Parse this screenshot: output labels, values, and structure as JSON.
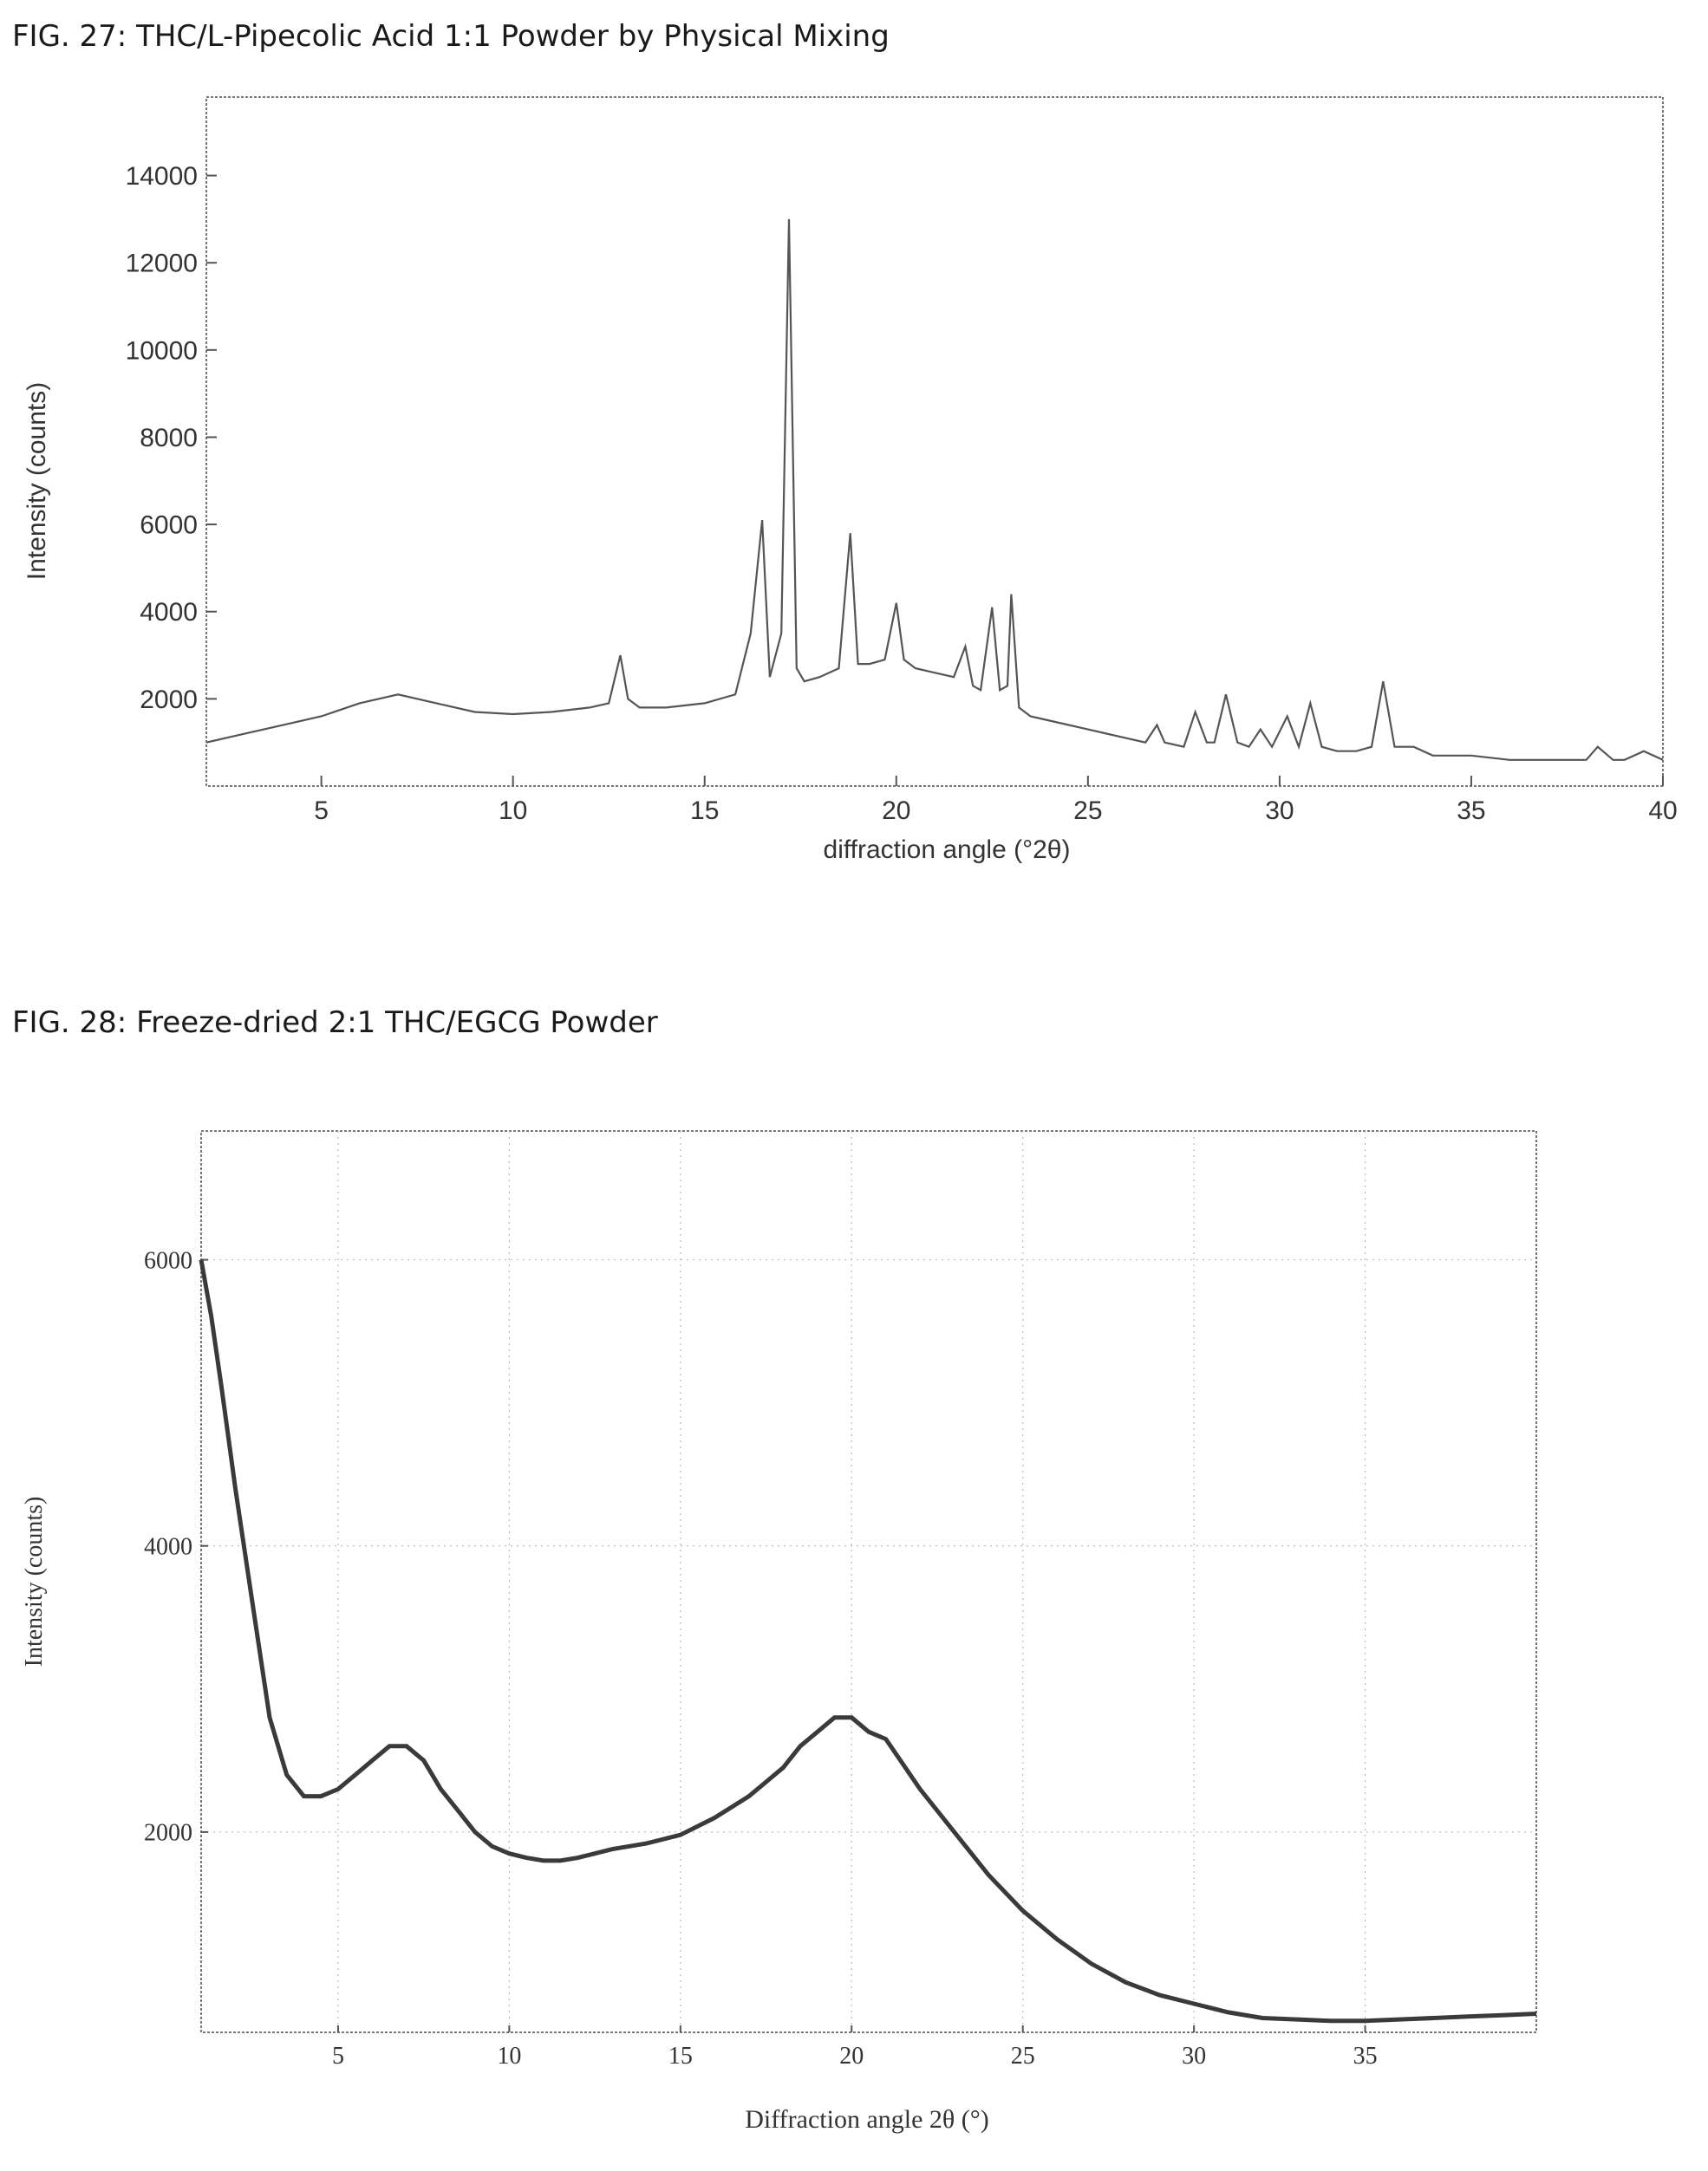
{
  "figures": [
    {
      "caption": "FIG. 27: THC/L-Pipecolic Acid 1:1 Powder by Physical Mixing",
      "chart_data": {
        "type": "line",
        "title": "",
        "xlabel": "diffraction angle (°2θ)",
        "ylabel": "Intensity (counts)",
        "xlim": [
          2,
          40
        ],
        "ylim": [
          0,
          15800
        ],
        "xticks": [
          5,
          10,
          15,
          20,
          25,
          30,
          35,
          40
        ],
        "yticks": [
          2000,
          4000,
          6000,
          8000,
          10000,
          12000,
          14000
        ],
        "grid": false,
        "line_color": "#555555",
        "series": [
          {
            "x": [
              2,
              3,
              4,
              5,
              6,
              7,
              8,
              9,
              10,
              11,
              12,
              12.5,
              12.8,
              13.0,
              13.3,
              14,
              15,
              15.8,
              16.2,
              16.5,
              16.7,
              17.0,
              17.2,
              17.4,
              17.6,
              18,
              18.5,
              18.8,
              19.0,
              19.3,
              19.7,
              20.0,
              20.2,
              20.5,
              21,
              21.5,
              21.8,
              22.0,
              22.2,
              22.5,
              22.7,
              22.9,
              23.0,
              23.2,
              23.5,
              24,
              25,
              26,
              26.5,
              26.8,
              27,
              27.5,
              27.8,
              28.1,
              28.3,
              28.6,
              28.9,
              29.2,
              29.5,
              29.8,
              30.2,
              30.5,
              30.8,
              31.1,
              31.5,
              32,
              32.4,
              32.7,
              33.0,
              33.5,
              34,
              35,
              36,
              37,
              38,
              38.3,
              38.7,
              39,
              39.5,
              40
            ],
            "y": [
              1000,
              1200,
              1400,
              1600,
              1900,
              2100,
              1900,
              1700,
              1650,
              1700,
              1800,
              1900,
              3000,
              2000,
              1800,
              1800,
              1900,
              2100,
              3500,
              6100,
              2500,
              3500,
              13000,
              2700,
              2400,
              2500,
              2700,
              5800,
              2800,
              2800,
              2900,
              4200,
              2900,
              2700,
              2600,
              2500,
              3200,
              2300,
              2200,
              4100,
              2200,
              2300,
              4400,
              1800,
              1600,
              1500,
              1300,
              1100,
              1000,
              1400,
              1000,
              900,
              1700,
              1000,
              1000,
              2100,
              1000,
              900,
              1300,
              900,
              1600,
              900,
              1900,
              900,
              800,
              800,
              900,
              2400,
              900,
              900,
              700,
              700,
              600,
              600,
              600,
              900,
              600,
              600,
              800,
              600
            ]
          }
        ]
      }
    },
    {
      "caption": "FIG. 28: Freeze-dried 2:1 THC/EGCG Powder",
      "chart_data": {
        "type": "line",
        "title": "",
        "xlabel": "Diffraction angle 2θ (°)",
        "ylabel": "Intensity (counts)",
        "xlim": [
          1,
          40
        ],
        "ylim": [
          600,
          6900
        ],
        "xticks": [
          5,
          10,
          15,
          20,
          25,
          30,
          35
        ],
        "yticks": [
          2000,
          4000,
          6000
        ],
        "grid": true,
        "line_color": "#3a3a3a",
        "series": [
          {
            "x": [
              1,
              1.3,
              1.6,
              2.0,
              2.5,
              3.0,
              3.5,
              4.0,
              4.5,
              5.0,
              5.5,
              6.0,
              6.5,
              7.0,
              7.5,
              8.0,
              8.5,
              9.0,
              9.5,
              10.0,
              10.5,
              11.0,
              11.5,
              12.0,
              12.5,
              13.0,
              14.0,
              15.0,
              16.0,
              17.0,
              18.0,
              18.5,
              19.0,
              19.5,
              20.0,
              20.5,
              21.0,
              22.0,
              23.0,
              24.0,
              25.0,
              26.0,
              27.0,
              28.0,
              29.0,
              30.0,
              31.0,
              32.0,
              33.0,
              34.0,
              35.0,
              36.0,
              37.0,
              38.0,
              39.0,
              40.0
            ],
            "y": [
              6000,
              5600,
              5100,
              4400,
              3600,
              2800,
              2400,
              2250,
              2250,
              2300,
              2400,
              2500,
              2600,
              2600,
              2500,
              2300,
              2150,
              2000,
              1900,
              1850,
              1820,
              1800,
              1800,
              1820,
              1850,
              1880,
              1920,
              1980,
              2100,
              2250,
              2450,
              2600,
              2700,
              2800,
              2800,
              2700,
              2650,
              2300,
              2000,
              1700,
              1450,
              1250,
              1080,
              950,
              860,
              800,
              740,
              700,
              690,
              680,
              680,
              690,
              700,
              710,
              720,
              730
            ]
          }
        ]
      }
    }
  ]
}
